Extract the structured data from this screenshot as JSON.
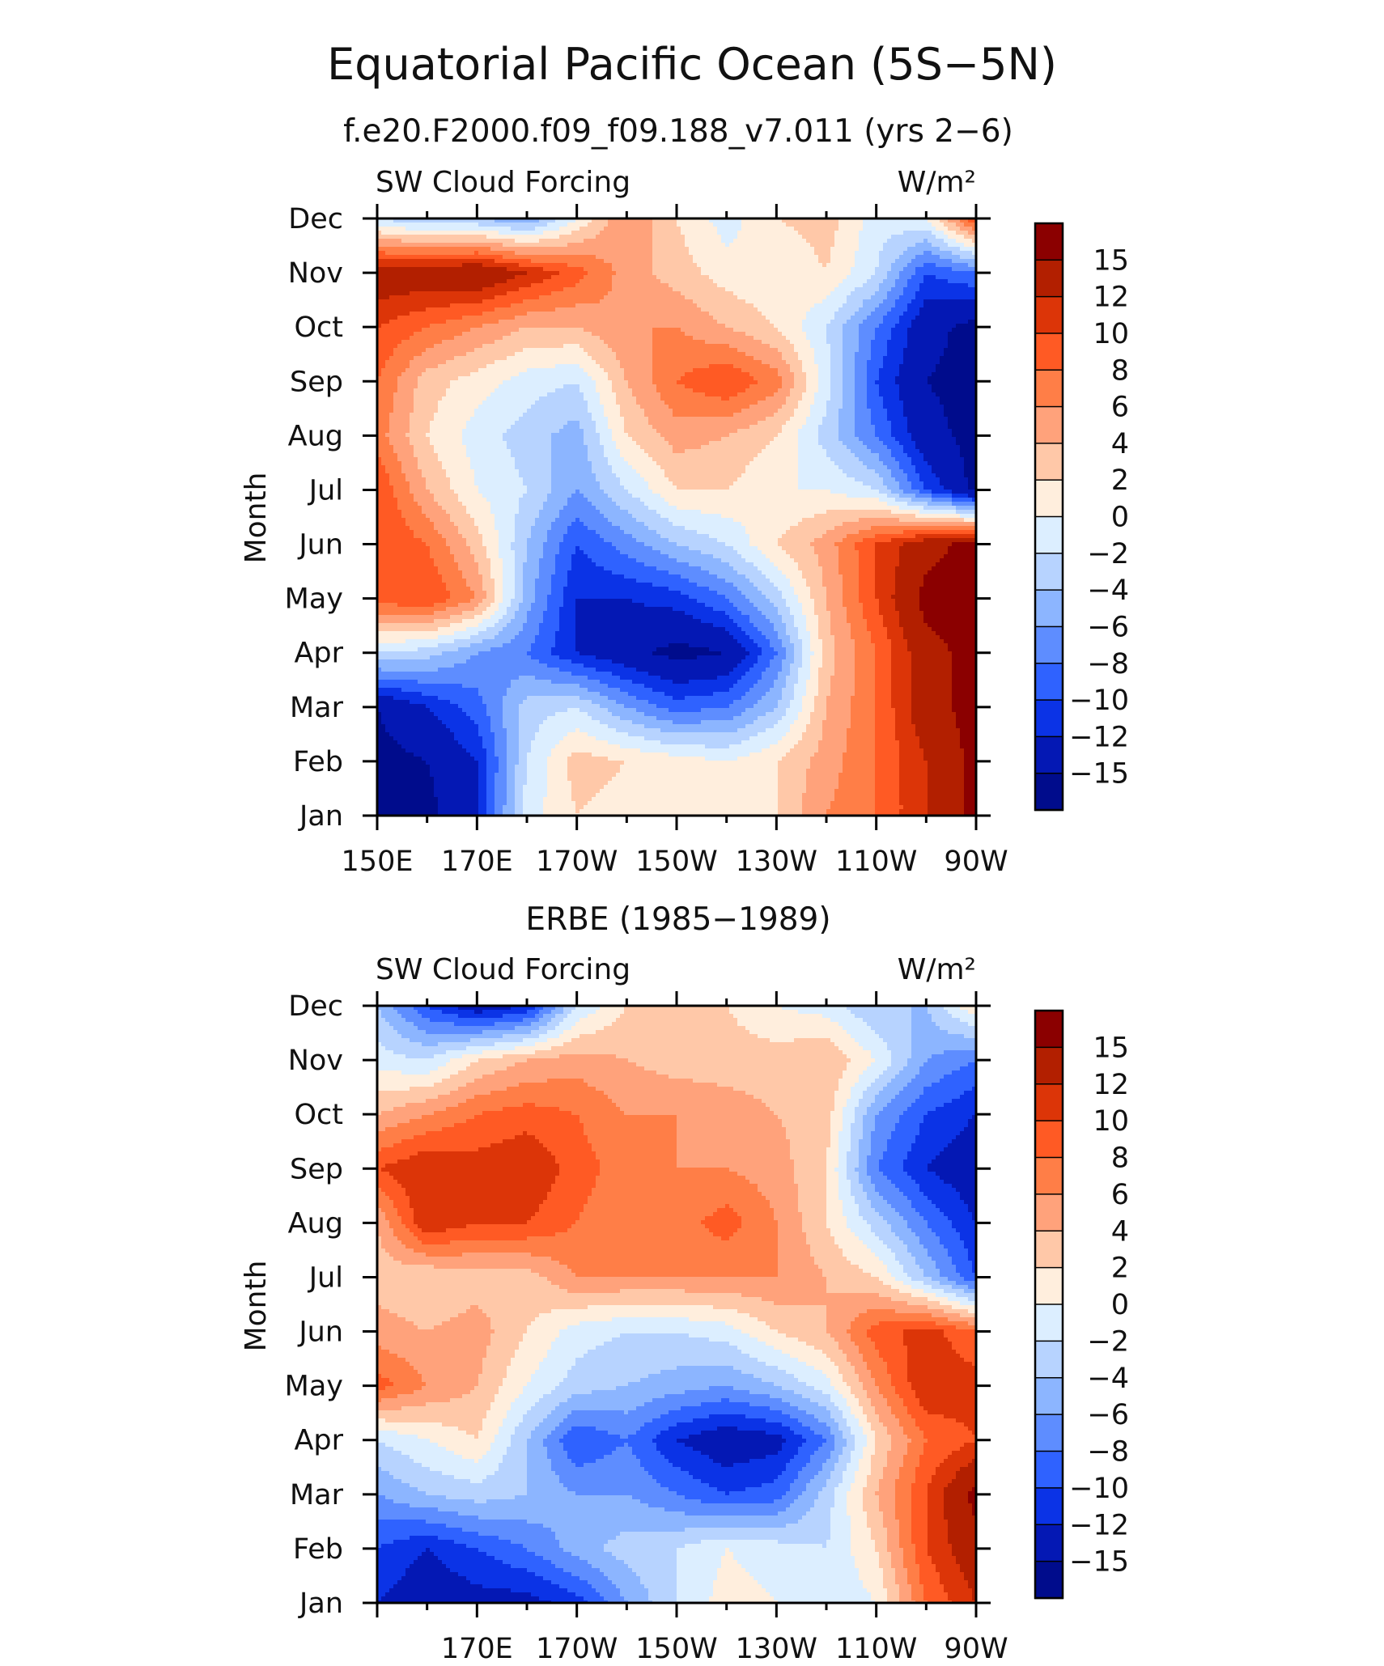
{
  "title": "Equatorial Pacific Ocean (5S−5N)",
  "colorbar_colors": [
    "#8b0000",
    "#b21f00",
    "#dc3508",
    "#ff5a24",
    "#ff7e47",
    "#ffa27b",
    "#ffc8a8",
    "#ffeedd",
    "#dceeff",
    "#b7d3ff",
    "#8cb5ff",
    "#5e8dff",
    "#2f62ff",
    "#0b33e6",
    "#0418b4",
    "#000c8c"
  ],
  "chart_data": [
    {
      "type": "heatmap",
      "title": "f.e20.F2000.f09_f09.188_v7.011 (yrs 2−6)",
      "left_label": "SW Cloud Forcing",
      "units": "W/m²",
      "ylabel": "Month",
      "xlabel": "",
      "y_ticks": [
        "Jan",
        "Feb",
        "Mar",
        "Apr",
        "May",
        "Jun",
        "Jul",
        "Aug",
        "Sep",
        "Oct",
        "Nov",
        "Dec"
      ],
      "x_ticks": [
        "150E",
        "170E",
        "170W",
        "150W",
        "130W",
        "110W",
        "90W"
      ],
      "xlim": [
        150,
        270
      ],
      "colorbar_labels": [
        "15",
        "12",
        "10",
        "8",
        "6",
        "4",
        "2",
        "0",
        "−2",
        "−4",
        "−6",
        "−8",
        "−10",
        "−12",
        "−15"
      ],
      "x": [
        150,
        160,
        170,
        180,
        190,
        200,
        210,
        220,
        230,
        240,
        250,
        260,
        270
      ],
      "y": [
        "Jan",
        "Feb",
        "Mar",
        "Apr",
        "May",
        "Jun",
        "Jul",
        "Aug",
        "Sep",
        "Oct",
        "Nov",
        "Dec"
      ],
      "z": [
        [
          -16,
          -16,
          -12,
          -1,
          2,
          1,
          2,
          1,
          2,
          6,
          8,
          12,
          16
        ],
        [
          -16,
          -15,
          -12,
          -2,
          3,
          2,
          1,
          0,
          2,
          5,
          8,
          12,
          16
        ],
        [
          -15,
          -12,
          -9,
          -3,
          -2,
          -6,
          -9,
          -8,
          -4,
          4,
          8,
          14,
          16
        ],
        [
          -2,
          -3,
          -6,
          -8,
          -12,
          -14,
          -16,
          -15,
          -8,
          3,
          8,
          14,
          16
        ],
        [
          9,
          10,
          6,
          -5,
          -12,
          -12,
          -11,
          -8,
          -3,
          4,
          10,
          16,
          16
        ],
        [
          10,
          8,
          3,
          -4,
          -10,
          -7,
          -4,
          -2,
          2,
          5,
          10,
          14,
          16
        ],
        [
          10,
          4,
          0,
          -2,
          -6,
          -2,
          2,
          2,
          0,
          0,
          -2,
          -10,
          -16
        ],
        [
          7,
          2,
          -1,
          -3,
          -5,
          2,
          5,
          4,
          2,
          -3,
          -8,
          -14,
          -16
        ],
        [
          8,
          3,
          1,
          -1,
          -2,
          4,
          8,
          10,
          7,
          -1,
          -10,
          -15,
          -16
        ],
        [
          10,
          8,
          6,
          4,
          4,
          6,
          6,
          4,
          2,
          -2,
          -8,
          -14,
          -16
        ],
        [
          14,
          14,
          15,
          12,
          9,
          5,
          3,
          1,
          0,
          2,
          -2,
          -10,
          -8
        ],
        [
          -2,
          -4,
          -4,
          -6,
          0,
          6,
          2,
          -1,
          2,
          3,
          -1,
          0,
          10
        ]
      ]
    },
    {
      "type": "heatmap",
      "title": "ERBE (1985−1989)",
      "left_label": "SW Cloud Forcing",
      "units": "W/m²",
      "ylabel": "Month",
      "xlabel": "",
      "y_ticks": [
        "Jan",
        "Feb",
        "Mar",
        "Apr",
        "May",
        "Jun",
        "Jul",
        "Aug",
        "Sep",
        "Oct",
        "Nov",
        "Dec"
      ],
      "x_ticks": [
        "170E",
        "170W",
        "150W",
        "130W",
        "110W",
        "90W"
      ],
      "xlim": [
        150,
        270
      ],
      "colorbar_labels": [
        "15",
        "12",
        "10",
        "8",
        "6",
        "4",
        "2",
        "0",
        "−2",
        "−4",
        "−6",
        "−8",
        "−10",
        "−12",
        "−15"
      ],
      "x": [
        150,
        160,
        170,
        180,
        190,
        200,
        210,
        220,
        230,
        240,
        250,
        260,
        270
      ],
      "y": [
        "Jan",
        "Feb",
        "Mar",
        "Apr",
        "May",
        "Jun",
        "Jul",
        "Aug",
        "Sep",
        "Oct",
        "Nov",
        "Dec"
      ],
      "z": [
        [
          -12,
          -14,
          -13,
          -13,
          -11,
          -6,
          -2,
          1,
          0,
          -2,
          0,
          8,
          12
        ],
        [
          -10,
          -12,
          -10,
          -8,
          -5,
          -3,
          -2,
          0,
          -1,
          -2,
          2,
          10,
          14
        ],
        [
          -6,
          -4,
          -3,
          -4,
          -6,
          -6,
          -8,
          -10,
          -9,
          -3,
          4,
          10,
          16
        ],
        [
          -2,
          0,
          2,
          -4,
          -10,
          -8,
          -12,
          -14,
          -13,
          -8,
          2,
          8,
          10
        ],
        [
          9,
          6,
          4,
          0,
          -3,
          -4,
          -5,
          -6,
          -4,
          -1,
          6,
          12,
          11
        ],
        [
          5,
          4,
          5,
          2,
          -1,
          -2,
          -2,
          -1,
          2,
          4,
          9,
          11,
          8
        ],
        [
          3,
          2,
          3,
          3,
          6,
          6,
          6,
          6,
          6,
          4,
          2,
          -4,
          -10
        ],
        [
          4,
          12,
          10,
          10,
          8,
          6,
          7,
          9,
          6,
          2,
          -3,
          -8,
          -12
        ],
        [
          10,
          12,
          11,
          12,
          9,
          7,
          6,
          6,
          5,
          2,
          -8,
          -12,
          -14
        ],
        [
          4,
          6,
          8,
          9,
          8,
          6,
          6,
          5,
          4,
          3,
          -6,
          -10,
          -12
        ],
        [
          -1,
          -2,
          2,
          4,
          5,
          4,
          3,
          3,
          3,
          4,
          0,
          -6,
          -8
        ],
        [
          -4,
          -10,
          -14,
          -12,
          -2,
          2,
          3,
          2,
          0,
          -1,
          -4,
          -4,
          2
        ]
      ]
    }
  ]
}
